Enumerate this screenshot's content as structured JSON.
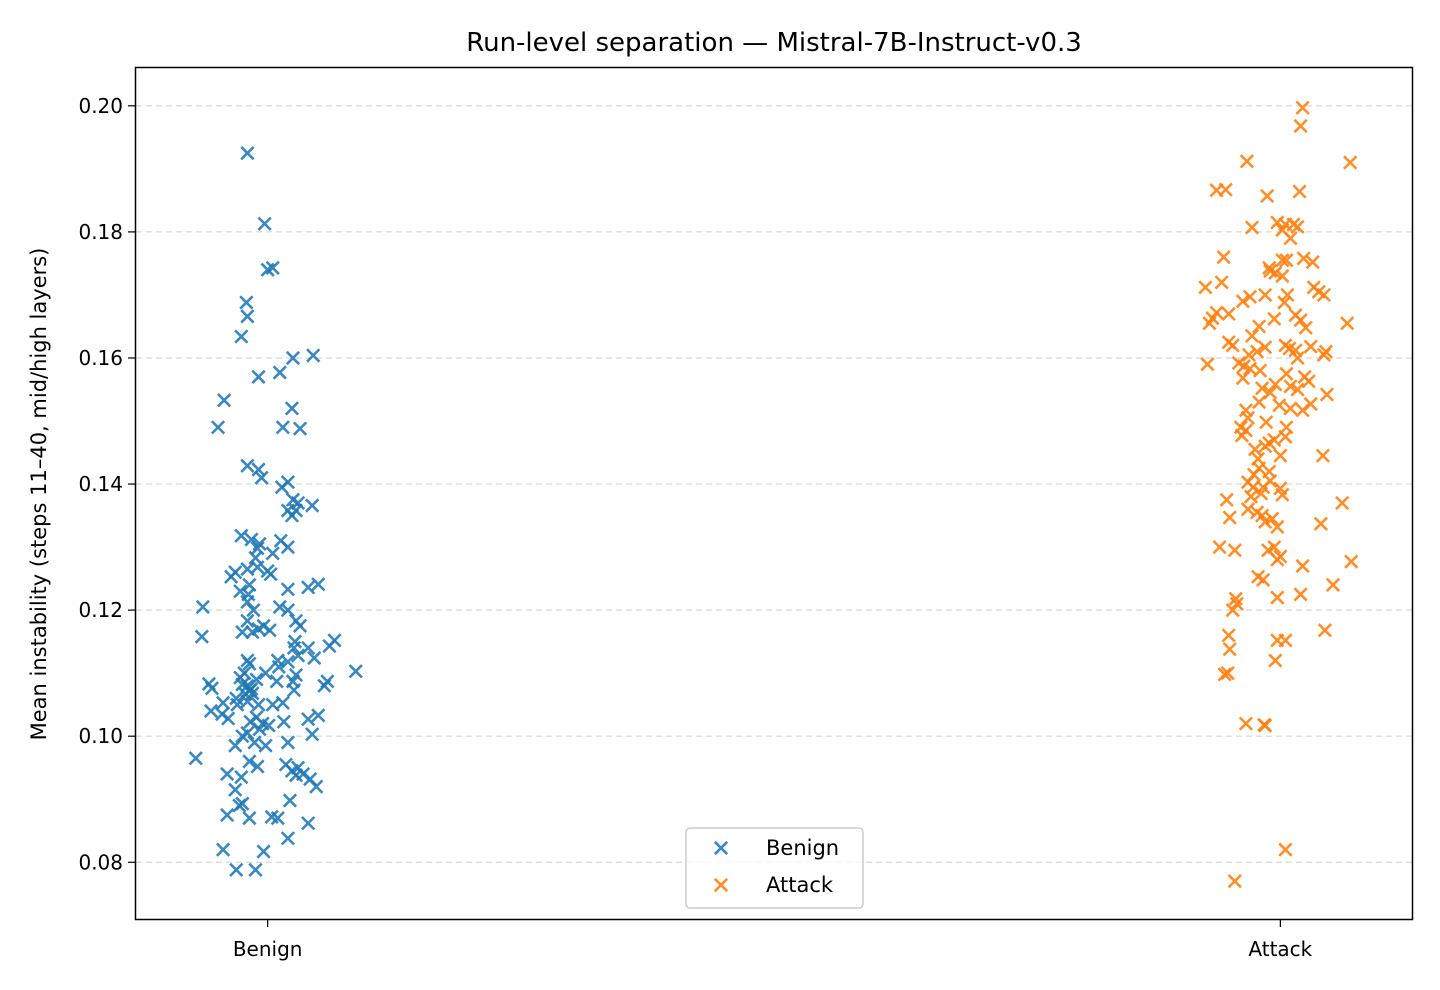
{
  "chart_data": {
    "type": "scatter",
    "title": "Run-level separation — Mistral-7B-Instruct-v0.3",
    "xlabel": "",
    "ylabel": "Mean instability (steps 11–40, mid/high layers)",
    "categories": [
      "Benign",
      "Attack"
    ],
    "xlim": [
      -0.13,
      1.13
    ],
    "ylim": [
      0.071,
      0.206
    ],
    "yticks": [
      "0.08",
      "0.10",
      "0.12",
      "0.14",
      "0.16",
      "0.18",
      "0.20"
    ],
    "grid": "y dashed",
    "legend": {
      "placement": "lower center",
      "entries": [
        "Benign",
        "Attack"
      ]
    },
    "colors": {
      "Benign": "#1f77b4",
      "Attack": "#ff7f0e"
    },
    "marker": "x",
    "series": [
      {
        "name": "Benign",
        "points": [
          [
            -0.02,
            0.1925
          ],
          [
            -0.003,
            0.1813
          ],
          [
            0.005,
            0.1743
          ],
          [
            0.0,
            0.174
          ],
          [
            -0.021,
            0.1688
          ],
          [
            -0.02,
            0.1666
          ],
          [
            -0.026,
            0.1634
          ],
          [
            -0.009,
            0.157
          ],
          [
            0.012,
            0.1577
          ],
          [
            0.025,
            0.16
          ],
          [
            0.045,
            0.1604
          ],
          [
            -0.043,
            0.1533
          ],
          [
            -0.049,
            0.149
          ],
          [
            0.024,
            0.152
          ],
          [
            0.015,
            0.149
          ],
          [
            0.032,
            0.1488
          ],
          [
            -0.02,
            0.1429
          ],
          [
            -0.009,
            0.1423
          ],
          [
            -0.006,
            0.141
          ],
          [
            0.014,
            0.1395
          ],
          [
            0.02,
            0.1403
          ],
          [
            0.025,
            0.1375
          ],
          [
            0.03,
            0.137
          ],
          [
            0.044,
            0.1366
          ],
          [
            0.02,
            0.1358
          ],
          [
            0.024,
            0.135
          ],
          [
            0.028,
            0.1358
          ],
          [
            -0.026,
            0.1318
          ],
          [
            -0.016,
            0.1312
          ],
          [
            -0.008,
            0.1305
          ],
          [
            -0.01,
            0.1298
          ],
          [
            0.005,
            0.129
          ],
          [
            0.013,
            0.131
          ],
          [
            0.02,
            0.13
          ],
          [
            -0.012,
            0.1283
          ],
          [
            -0.032,
            0.126
          ],
          [
            -0.036,
            0.1253
          ],
          [
            -0.02,
            0.1265
          ],
          [
            0.0,
            0.1262
          ],
          [
            -0.01,
            0.1268
          ],
          [
            0.003,
            0.1257
          ],
          [
            -0.018,
            0.124
          ],
          [
            -0.027,
            0.123
          ],
          [
            -0.019,
            0.1225
          ],
          [
            0.02,
            0.1233
          ],
          [
            0.04,
            0.1236
          ],
          [
            0.05,
            0.1241
          ],
          [
            -0.064,
            0.1205
          ],
          [
            -0.02,
            0.1213
          ],
          [
            -0.014,
            0.12
          ],
          [
            0.012,
            0.1205
          ],
          [
            0.02,
            0.12
          ],
          [
            -0.02,
            0.1183
          ],
          [
            -0.004,
            0.1175
          ],
          [
            -0.009,
            0.117
          ],
          [
            0.002,
            0.1168
          ],
          [
            -0.015,
            0.1165
          ],
          [
            0.028,
            0.1183
          ],
          [
            -0.025,
            0.1165
          ],
          [
            0.032,
            0.1175
          ],
          [
            -0.065,
            0.1158
          ],
          [
            0.027,
            0.115
          ],
          [
            0.066,
            0.1152
          ],
          [
            0.061,
            0.1143
          ],
          [
            0.04,
            0.114
          ],
          [
            0.026,
            0.114
          ],
          [
            0.03,
            0.1128
          ],
          [
            0.046,
            0.1124
          ],
          [
            0.011,
            0.111
          ],
          [
            0.01,
            0.112
          ],
          [
            0.02,
            0.1118
          ],
          [
            0.087,
            0.1103
          ],
          [
            -0.02,
            0.112
          ],
          [
            -0.018,
            0.1115
          ],
          [
            -0.002,
            0.11
          ],
          [
            -0.023,
            0.11
          ],
          [
            -0.027,
            0.1093
          ],
          [
            0.028,
            0.1097
          ],
          [
            -0.011,
            0.109
          ],
          [
            0.009,
            0.1087
          ],
          [
            0.025,
            0.1087
          ],
          [
            0.059,
            0.1087
          ],
          [
            -0.058,
            0.1083
          ],
          [
            -0.055,
            0.1076
          ],
          [
            -0.025,
            0.1082
          ],
          [
            -0.02,
            0.108
          ],
          [
            -0.018,
            0.1072
          ],
          [
            -0.016,
            0.1075
          ],
          [
            -0.022,
            0.1067
          ],
          [
            -0.015,
            0.1068
          ],
          [
            -0.031,
            0.106
          ],
          [
            0.026,
            0.1073
          ],
          [
            0.056,
            0.108
          ],
          [
            -0.02,
            0.1055
          ],
          [
            -0.03,
            0.105
          ],
          [
            -0.044,
            0.1053
          ],
          [
            -0.009,
            0.105
          ],
          [
            0.005,
            0.105
          ],
          [
            0.015,
            0.1053
          ],
          [
            -0.056,
            0.104
          ],
          [
            -0.045,
            0.1035
          ],
          [
            -0.039,
            0.1028
          ],
          [
            -0.011,
            0.103
          ],
          [
            -0.017,
            0.1023
          ],
          [
            -0.005,
            0.102
          ],
          [
            0.001,
            0.1017
          ],
          [
            0.016,
            0.1023
          ],
          [
            0.04,
            0.1027
          ],
          [
            0.05,
            0.1033
          ],
          [
            -0.008,
            0.1011
          ],
          [
            -0.02,
            0.1005
          ],
          [
            -0.025,
            0.1
          ],
          [
            -0.032,
            0.0985
          ],
          [
            -0.013,
            0.099
          ],
          [
            -0.002,
            0.0985
          ],
          [
            0.02,
            0.099
          ],
          [
            0.044,
            0.1003
          ],
          [
            -0.071,
            0.0965
          ],
          [
            -0.018,
            0.096
          ],
          [
            -0.01,
            0.0952
          ],
          [
            0.018,
            0.0955
          ],
          [
            0.03,
            0.095
          ],
          [
            0.024,
            0.0945
          ],
          [
            0.035,
            0.094
          ],
          [
            0.028,
            0.0938
          ],
          [
            0.042,
            0.0932
          ],
          [
            -0.04,
            0.094
          ],
          [
            -0.026,
            0.0935
          ],
          [
            0.048,
            0.092
          ],
          [
            -0.032,
            0.0915
          ],
          [
            -0.028,
            0.089
          ],
          [
            -0.025,
            0.0893
          ],
          [
            0.022,
            0.0898
          ],
          [
            -0.04,
            0.0875
          ],
          [
            -0.018,
            0.087
          ],
          [
            0.004,
            0.0872
          ],
          [
            0.01,
            0.087
          ],
          [
            0.04,
            0.0862
          ],
          [
            0.02,
            0.0838
          ],
          [
            -0.044,
            0.082
          ],
          [
            -0.004,
            0.0817
          ],
          [
            -0.031,
            0.0788
          ],
          [
            -0.012,
            0.0788
          ]
        ]
      },
      {
        "name": "Attack",
        "points": [
          [
            1.022,
            0.1997
          ],
          [
            1.02,
            0.1968
          ],
          [
            1.069,
            0.191
          ],
          [
            0.967,
            0.1912
          ],
          [
            0.987,
            0.1857
          ],
          [
            0.937,
            0.1866
          ],
          [
            0.946,
            0.1867
          ],
          [
            1.019,
            0.1864
          ],
          [
            0.997,
            0.1815
          ],
          [
            1.013,
            0.1812
          ],
          [
            1.017,
            0.1808
          ],
          [
            1.005,
            0.1812
          ],
          [
            1.002,
            0.1803
          ],
          [
            0.972,
            0.1807
          ],
          [
            1.01,
            0.179
          ],
          [
            0.944,
            0.176
          ],
          [
            1.002,
            0.1755
          ],
          [
            1.006,
            0.1755
          ],
          [
            1.023,
            0.1758
          ],
          [
            1.032,
            0.1752
          ],
          [
            0.989,
            0.1743
          ],
          [
            0.99,
            0.1738
          ],
          [
            0.995,
            0.1735
          ],
          [
            1.002,
            0.173
          ],
          [
            0.942,
            0.172
          ],
          [
            0.926,
            0.1712
          ],
          [
            1.033,
            0.1712
          ],
          [
            1.038,
            0.1705
          ],
          [
            1.043,
            0.17
          ],
          [
            1.007,
            0.17
          ],
          [
            0.985,
            0.17
          ],
          [
            0.97,
            0.1697
          ],
          [
            0.963,
            0.169
          ],
          [
            1.004,
            0.1688
          ],
          [
            0.937,
            0.1672
          ],
          [
            0.949,
            0.167
          ],
          [
            0.933,
            0.1663
          ],
          [
            0.93,
            0.1655
          ],
          [
            1.015,
            0.1668
          ],
          [
            1.066,
            0.1655
          ],
          [
            0.994,
            0.1662
          ],
          [
            1.02,
            0.166
          ],
          [
            1.025,
            0.1648
          ],
          [
            0.979,
            0.165
          ],
          [
            0.972,
            0.1635
          ],
          [
            0.949,
            0.1625
          ],
          [
            0.953,
            0.162
          ],
          [
            1.03,
            0.1618
          ],
          [
            0.977,
            0.161
          ],
          [
            0.985,
            0.1617
          ],
          [
            1.005,
            0.162
          ],
          [
            1.009,
            0.1615
          ],
          [
            1.015,
            0.1612
          ],
          [
            0.969,
            0.1605
          ],
          [
            1.017,
            0.16
          ],
          [
            1.043,
            0.1605
          ],
          [
            1.045,
            0.161
          ],
          [
            0.928,
            0.159
          ],
          [
            0.959,
            0.1592
          ],
          [
            0.964,
            0.1587
          ],
          [
            0.97,
            0.1583
          ],
          [
            0.98,
            0.158
          ],
          [
            1.006,
            0.1575
          ],
          [
            1.024,
            0.157
          ],
          [
            0.963,
            0.1568
          ],
          [
            1.028,
            0.1563
          ],
          [
            0.995,
            0.1558
          ],
          [
            1.01,
            0.1555
          ],
          [
            1.017,
            0.155
          ],
          [
            0.99,
            0.1545
          ],
          [
            0.982,
            0.1552
          ],
          [
            1.046,
            0.1542
          ],
          [
            0.979,
            0.153
          ],
          [
            0.999,
            0.1525
          ],
          [
            0.966,
            0.1517
          ],
          [
            1.01,
            0.152
          ],
          [
            1.03,
            0.1527
          ],
          [
            1.022,
            0.1517
          ],
          [
            0.968,
            0.1505
          ],
          [
            0.986,
            0.1498
          ],
          [
            0.961,
            0.149
          ],
          [
            0.966,
            0.1485
          ],
          [
            1.006,
            0.149
          ],
          [
            0.962,
            0.1477
          ],
          [
            0.989,
            0.1465
          ],
          [
            0.994,
            0.147
          ],
          [
            1.005,
            0.1475
          ],
          [
            0.985,
            0.146
          ],
          [
            0.975,
            0.1455
          ],
          [
            0.978,
            0.144
          ],
          [
            1.0,
            0.1445
          ],
          [
            1.042,
            0.1445
          ],
          [
            0.979,
            0.1425
          ],
          [
            0.989,
            0.142
          ],
          [
            0.974,
            0.1415
          ],
          [
            0.99,
            0.1405
          ],
          [
            0.968,
            0.1403
          ],
          [
            0.973,
            0.1395
          ],
          [
            0.983,
            0.1395
          ],
          [
            1.0,
            0.1393
          ],
          [
            0.981,
            0.1385
          ],
          [
            0.971,
            0.138
          ],
          [
            0.947,
            0.1375
          ],
          [
            1.002,
            0.1383
          ],
          [
            0.968,
            0.136
          ],
          [
            0.977,
            0.1355
          ],
          [
            0.982,
            0.135
          ],
          [
            0.992,
            0.1345
          ],
          [
            1.061,
            0.137
          ],
          [
            0.95,
            0.1347
          ],
          [
            1.04,
            0.1337
          ],
          [
            0.985,
            0.134
          ],
          [
            0.997,
            0.1332
          ],
          [
            0.94,
            0.13
          ],
          [
            0.955,
            0.1295
          ],
          [
            0.994,
            0.13
          ],
          [
            0.988,
            0.1295
          ],
          [
            1.0,
            0.1285
          ],
          [
            0.997,
            0.128
          ],
          [
            1.022,
            0.127
          ],
          [
            1.07,
            0.1277
          ],
          [
            0.978,
            0.1253
          ],
          [
            0.983,
            0.1248
          ],
          [
            0.956,
            0.1218
          ],
          [
            0.957,
            0.121
          ],
          [
            0.997,
            0.122
          ],
          [
            1.02,
            0.1225
          ],
          [
            1.052,
            0.124
          ],
          [
            0.953,
            0.12
          ],
          [
            0.949,
            0.116
          ],
          [
            0.95,
            0.1138
          ],
          [
            1.044,
            0.1168
          ],
          [
            0.997,
            0.1152
          ],
          [
            1.005,
            0.1152
          ],
          [
            0.995,
            0.112
          ],
          [
            0.948,
            0.11
          ],
          [
            0.945,
            0.1098
          ],
          [
            0.966,
            0.102
          ],
          [
            0.984,
            0.1018
          ],
          [
            0.985,
            0.1017
          ],
          [
            1.005,
            0.082
          ],
          [
            0.955,
            0.077
          ]
        ]
      }
    ]
  }
}
